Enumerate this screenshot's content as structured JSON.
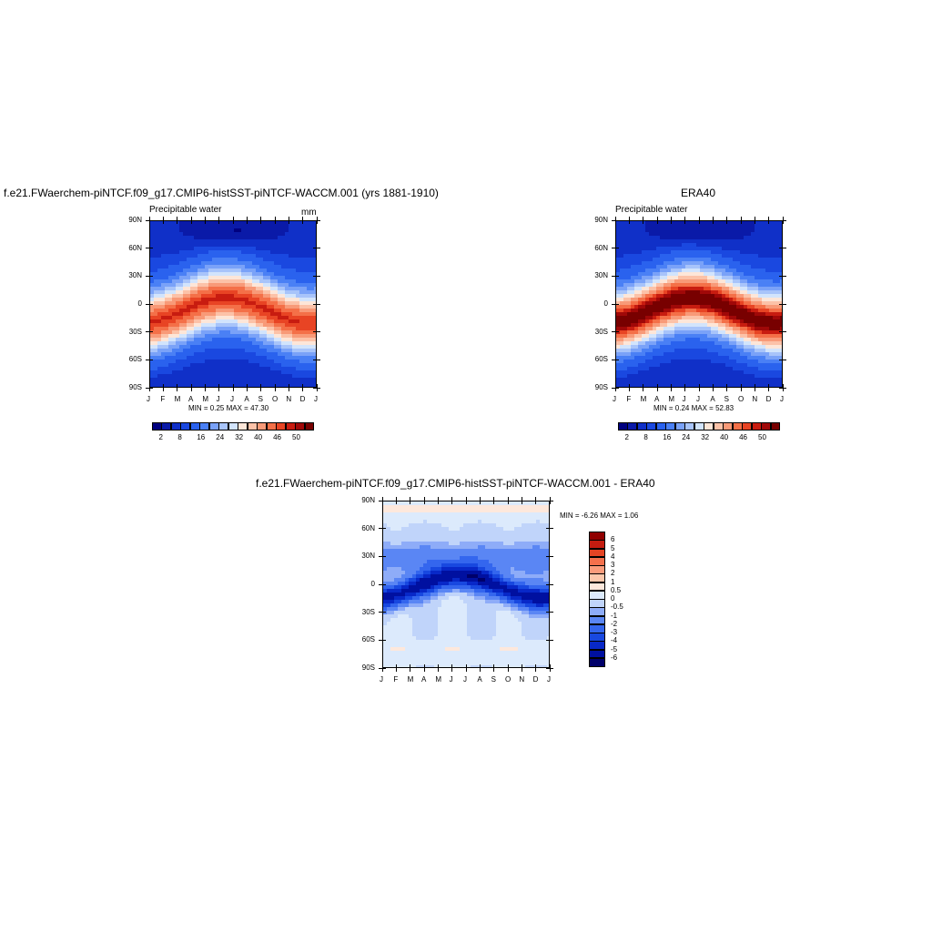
{
  "chart_data": [
    {
      "type": "heatmap",
      "title": "f.e21.FWaerchem-piNTCF.f09_g17.CMIP6-histSST-piNTCF-WACCM.001 (yrs 1881-1910)",
      "left_label": "Precipitable water",
      "right_label": "mm",
      "x_ticks": [
        "J",
        "F",
        "M",
        "A",
        "M",
        "J",
        "J",
        "A",
        "S",
        "O",
        "N",
        "D",
        "J"
      ],
      "y_ticks": [
        "90N",
        "60N",
        "30N",
        "0",
        "30S",
        "60S",
        "90S"
      ],
      "min_label": "MIN =",
      "min_value": "0.25",
      "max_label": "MAX =",
      "max_value": "47.30",
      "levels": [
        2,
        4,
        6,
        8,
        12,
        16,
        20,
        24,
        28,
        32,
        36,
        40,
        44,
        46,
        48,
        50
      ],
      "colorbar_labels": [
        "2",
        "8",
        "16",
        "24",
        "32",
        "40",
        "46",
        "50"
      ],
      "peak": 47.3
    },
    {
      "type": "heatmap",
      "title": "ERA40",
      "left_label": "Precipitable water",
      "right_label": "",
      "x_ticks": [
        "J",
        "F",
        "M",
        "A",
        "M",
        "J",
        "J",
        "A",
        "S",
        "O",
        "N",
        "D",
        "J"
      ],
      "y_ticks": [
        "90N",
        "60N",
        "30N",
        "0",
        "30S",
        "60S",
        "90S"
      ],
      "min_label": "MIN =",
      "min_value": "0.24",
      "max_label": "MAX =",
      "max_value": "52.83",
      "levels": [
        2,
        4,
        6,
        8,
        12,
        16,
        20,
        24,
        28,
        32,
        36,
        40,
        44,
        46,
        48,
        50
      ],
      "colorbar_labels": [
        "2",
        "8",
        "16",
        "24",
        "32",
        "40",
        "46",
        "50"
      ],
      "peak": 52.83
    },
    {
      "type": "heatmap",
      "title": "f.e21.FWaerchem-piNTCF.f09_g17.CMIP6-histSST-piNTCF-WACCM.001 - ERA40",
      "x_ticks": [
        "J",
        "F",
        "M",
        "A",
        "M",
        "J",
        "J",
        "A",
        "S",
        "O",
        "N",
        "D",
        "J"
      ],
      "y_ticks": [
        "90N",
        "60N",
        "30N",
        "0",
        "30S",
        "60S",
        "90S"
      ],
      "min_label": "MIN =",
      "min_value": "-6.26",
      "max_label": "MAX =",
      "max_value": "1.06",
      "colorbar_labels": [
        "6",
        "5",
        "4",
        "3",
        "2",
        "1",
        "0.5",
        "0",
        "-0.5",
        "-1",
        "-2",
        "-3",
        "-4",
        "-5",
        "-6"
      ]
    }
  ],
  "colors": {
    "abs_scale": [
      "#000080",
      "#0a1aa8",
      "#1030c8",
      "#1a48e0",
      "#2a62ee",
      "#4a80f5",
      "#7aa2f8",
      "#a8c4fa",
      "#d2e4fc",
      "#fde6d8",
      "#fcc2a8",
      "#f89a78",
      "#f47048",
      "#e84424",
      "#c81c10",
      "#a00808",
      "#780000"
    ],
    "diff_scale": [
      "#00006a",
      "#0010a0",
      "#0828c8",
      "#1848e0",
      "#3466ee",
      "#5a86f4",
      "#8eacf8",
      "#c0d4fa",
      "#dceafc",
      "#fde8dc",
      "#fcc8ac",
      "#fa9c7c",
      "#f4704c",
      "#e44424",
      "#c41c10",
      "#900000"
    ]
  }
}
